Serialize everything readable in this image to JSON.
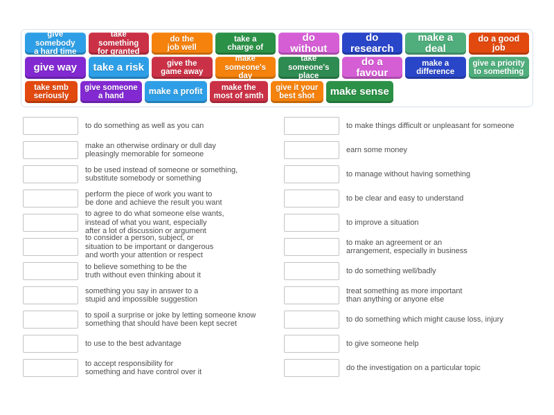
{
  "activity": {
    "type": "match-up"
  },
  "tiles": {
    "rows": [
      [
        {
          "label": "give somebody\na hard time",
          "color": "#2e9fe6"
        },
        {
          "label": "take something\nfor granted",
          "color": "#cb3146"
        },
        {
          "label": "do the\njob well",
          "color": "#f5820d"
        },
        {
          "label": "take a\ncharge of",
          "color": "#2b9147"
        },
        {
          "label": "do without",
          "color": "#d55ed5"
        },
        {
          "label": "do research",
          "color": "#2946c9"
        },
        {
          "label": "make a deal",
          "color": "#4fae7c"
        },
        {
          "label": "do a good job",
          "color": "#e1490f"
        }
      ],
      [
        {
          "label": "give way",
          "color": "#8229d1"
        },
        {
          "label": "take a risk",
          "color": "#2e9fe6"
        },
        {
          "label": "give the\ngame away",
          "color": "#cb3146"
        },
        {
          "label": "make\nsomeone's day",
          "color": "#f5820d"
        },
        {
          "label": "take someone's\nplace",
          "color": "#2e8b51"
        },
        {
          "label": "do a favour",
          "color": "#d55ed5"
        },
        {
          "label": "make a\ndifference",
          "color": "#2946c9"
        },
        {
          "label": "give a priority\nto something",
          "color": "#4fae7c"
        }
      ],
      [
        {
          "label": "take smb\nseriously",
          "color": "#e1490f"
        },
        {
          "label": "give someone\na hand",
          "color": "#8229d1"
        },
        {
          "label": "make a profit",
          "color": "#2e9fe6"
        },
        {
          "label": "make the\nmost of smth",
          "color": "#cb3146"
        },
        {
          "label": "give it your\nbest shot",
          "color": "#f5820d"
        },
        {
          "label": "make sense",
          "color": "#2b9147"
        }
      ]
    ]
  },
  "definitions": {
    "left": [
      "to do something as well as you can",
      "make an otherwise ordinary or dull day\npleasingly memorable for someone",
      "to be used instead of someone or something,\nsubstitute somebody or something",
      "perform the piece of work you want to\nbe done and achieve the result you want",
      "to agree to do what someone else wants,\ninstead of what you want, especially\nafter a lot of discussion or argument",
      "to consider a person, subject, or\nsituation to be important or dangerous\nand worth your attention or respect",
      "to believe something to be the\ntruth without even thinking about it",
      "something you say in answer to a\nstupid and impossible suggestion",
      "to spoil a surprise or joke by letting someone know\nsomething that should have been kept secret",
      "to use to the best advantage",
      "to accept responsibility for\nsomething and have control over it"
    ],
    "right": [
      "to make things difficult or unpleasant for someone",
      "earn some money",
      "to manage without having something",
      "to be clear and easy to understand",
      "to improve a situation",
      "to make an agreement or an\narrangement, especially in business",
      "to do something well/badly",
      "treat something as more important\nthan anything or anyone else",
      "to do something which might cause loss, injury",
      "to give someone help",
      "do the investigation on a particular topic"
    ]
  }
}
